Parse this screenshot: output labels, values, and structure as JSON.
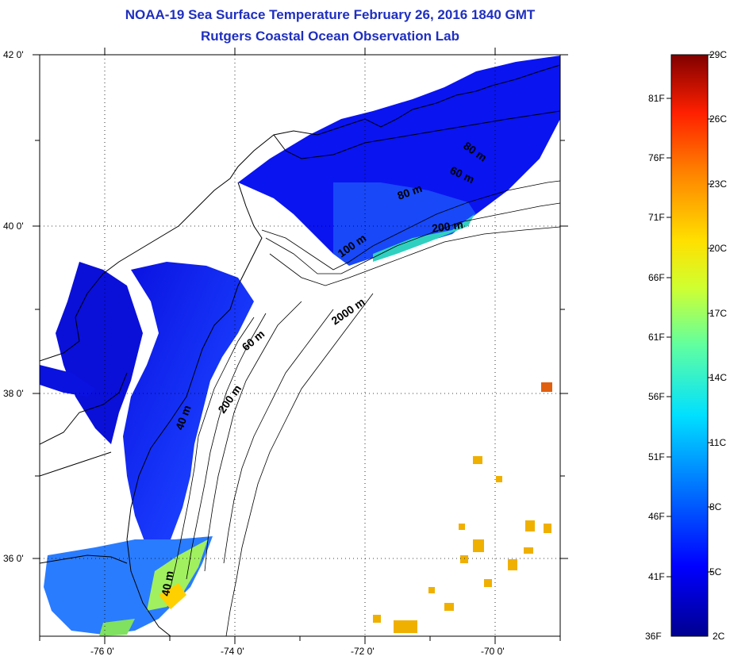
{
  "title": {
    "line1": "NOAA-19 Sea Surface Temperature February 26, 2016 1840 GMT",
    "line2": "Rutgers Coastal Ocean Observation Lab"
  },
  "axes": {
    "lat_labels": [
      "42 0'",
      "40 0'",
      "38 0'",
      "36 0'"
    ],
    "lon_labels": [
      "-76 0'",
      "-74 0'",
      "-72 0'",
      "-70 0'"
    ]
  },
  "contours": [
    "80 m",
    "60 m",
    "80 m",
    "200 m",
    "100 m",
    "2000 m",
    "60 m",
    "200 m",
    "40 m",
    "40 m"
  ],
  "colorbar": {
    "fahrenheit": [
      "81F",
      "76F",
      "71F",
      "66F",
      "61F",
      "56F",
      "51F",
      "46F",
      "41F",
      "36F"
    ],
    "celsius": [
      "29C",
      "26C",
      "23C",
      "20C",
      "17C",
      "14C",
      "11C",
      "8C",
      "5C",
      "2C"
    ]
  }
}
